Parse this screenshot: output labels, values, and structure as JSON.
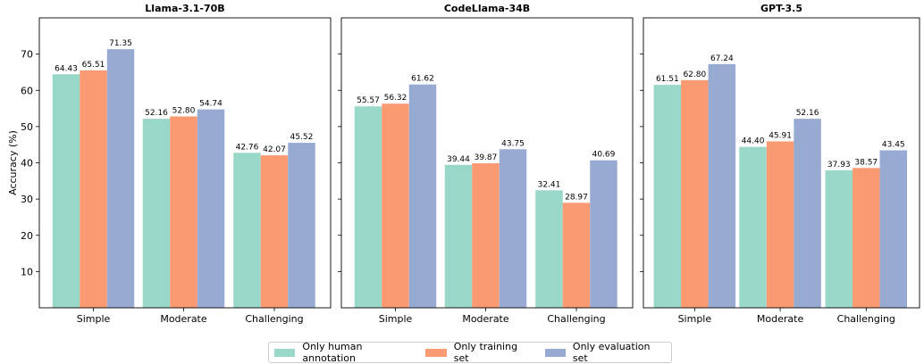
{
  "colors": {
    "Only human annotation": "#99d7c9",
    "Only training set": "#fa9a72",
    "Only evaluation set": "#97abd2"
  },
  "chart_data": [
    {
      "type": "bar",
      "title": "Llama-3.1-70B",
      "ylabel": "Accuracy (%)",
      "ylim": [
        0,
        80
      ],
      "yticks": [
        10,
        20,
        30,
        40,
        50,
        60,
        70
      ],
      "categories": [
        "Simple",
        "Moderate",
        "Challenging"
      ],
      "series": [
        {
          "name": "Only human annotation",
          "values": [
            64.43,
            52.16,
            42.76
          ],
          "labels": [
            "64.43",
            "52.16",
            "42.76"
          ]
        },
        {
          "name": "Only training set",
          "values": [
            65.51,
            52.8,
            42.07
          ],
          "labels": [
            "65.51",
            "52.80",
            "42.07"
          ]
        },
        {
          "name": "Only evaluation set",
          "values": [
            71.35,
            54.74,
            45.52
          ],
          "labels": [
            "71.35",
            "54.74",
            "45.52"
          ]
        }
      ]
    },
    {
      "type": "bar",
      "title": "CodeLlama-34B",
      "ylim": [
        0,
        80
      ],
      "categories": [
        "Simple",
        "Moderate",
        "Challenging"
      ],
      "series": [
        {
          "name": "Only human annotation",
          "values": [
            55.57,
            39.44,
            32.41
          ],
          "labels": [
            "55.57",
            "39.44",
            "32.41"
          ]
        },
        {
          "name": "Only training set",
          "values": [
            56.32,
            39.87,
            28.97
          ],
          "labels": [
            "56.32",
            "39.87",
            "28.97"
          ]
        },
        {
          "name": "Only evaluation set",
          "values": [
            61.62,
            43.75,
            40.69
          ],
          "labels": [
            "61.62",
            "43.75",
            "40.69"
          ]
        }
      ]
    },
    {
      "type": "bar",
      "title": "GPT-3.5",
      "ylim": [
        0,
        80
      ],
      "categories": [
        "Simple",
        "Moderate",
        "Challenging"
      ],
      "series": [
        {
          "name": "Only human annotation",
          "values": [
            61.51,
            44.4,
            37.93
          ],
          "labels": [
            "61.51",
            "44.40",
            "37.93"
          ]
        },
        {
          "name": "Only training set",
          "values": [
            62.8,
            45.91,
            38.57
          ],
          "labels": [
            "62.80",
            "45.91",
            "38.57"
          ]
        },
        {
          "name": "Only evaluation set",
          "values": [
            67.24,
            52.16,
            43.45
          ],
          "labels": [
            "67.24",
            "52.16",
            "43.45"
          ]
        }
      ]
    }
  ],
  "legend": {
    "placement": "bottom-center",
    "items": [
      "Only human annotation",
      "Only training set",
      "Only evaluation set"
    ]
  }
}
